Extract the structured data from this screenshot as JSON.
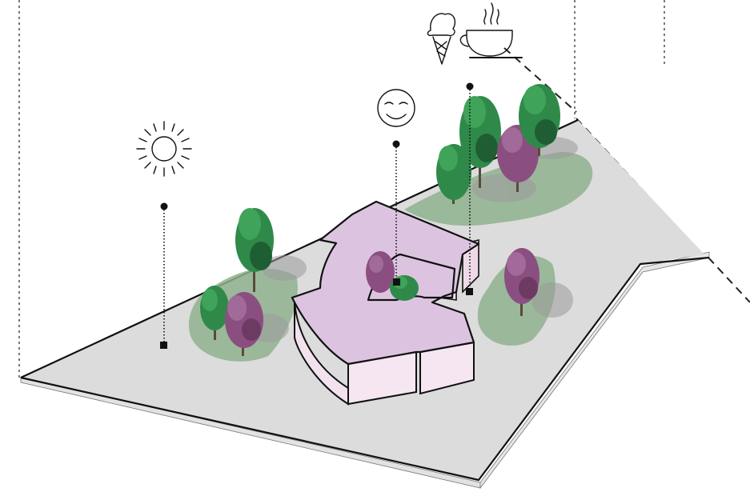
{
  "diagram": {
    "description_free": true,
    "icons": [
      {
        "name": "sun-icon"
      },
      {
        "name": "smiley-icon"
      },
      {
        "name": "ice-cream-icon"
      },
      {
        "name": "coffee-cup-icon"
      }
    ],
    "markers": [
      {
        "name": "sun-marker"
      },
      {
        "name": "smiley-marker"
      },
      {
        "name": "cafe-marker"
      }
    ],
    "colors": {
      "ground": "#dcdcdc",
      "ground_edge": "#cfcfcf",
      "lawn": "#8fb28f",
      "building_roof": "#dcc4e0",
      "building_wall": "#f3e1ee",
      "tree_green": "#2f8a4a",
      "tree_dark": "#1f5e33",
      "tree_purple": "#8a4f80",
      "line": "#111111"
    }
  }
}
